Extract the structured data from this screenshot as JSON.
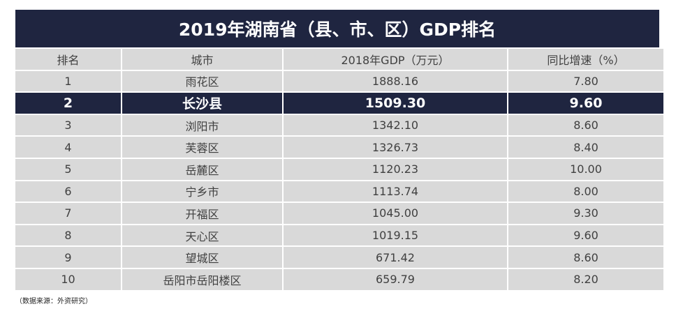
{
  "title": "2019年湖南省（县、市、区）GDP排名",
  "table": {
    "header": [
      "排名",
      "城市",
      "2018年GDP（万元）",
      "同比增速（%）"
    ],
    "rows": [
      [
        "1",
        "雨花区",
        "1888.16",
        "7.80"
      ],
      [
        "2",
        "长沙县",
        "1509.30",
        "9.60"
      ],
      [
        "3",
        "浏阳市",
        "1342.10",
        "8.60"
      ],
      [
        "4",
        "芙蓉区",
        "1326.73",
        "8.40"
      ],
      [
        "5",
        "岳麓区",
        "1120.23",
        "10.00"
      ],
      [
        "6",
        "宁乡市",
        "1113.74",
        "8.00"
      ],
      [
        "7",
        "开福区",
        "1045.00",
        "9.30"
      ],
      [
        "8",
        "天心区",
        "1019.15",
        "9.60"
      ],
      [
        "9",
        "望城区",
        "671.42",
        "8.60"
      ],
      [
        "10",
        "岳阳市岳阳楼区",
        "659.79",
        "8.20"
      ]
    ]
  },
  "source": "（数据来源：外资研究）"
}
